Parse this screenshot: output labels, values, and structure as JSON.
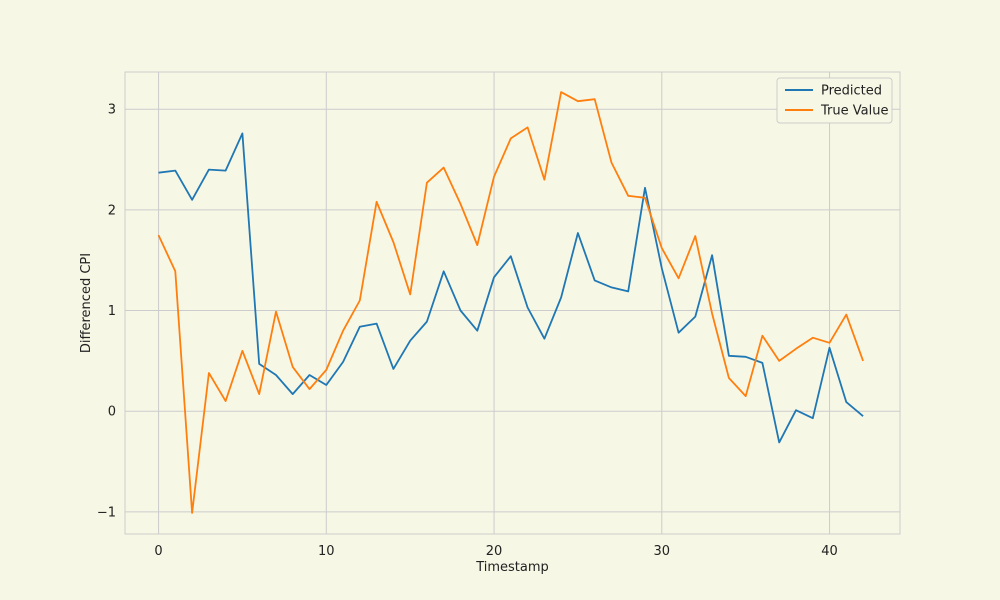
{
  "chart_data": {
    "type": "line",
    "title": "",
    "xlabel": "Timestamp",
    "ylabel": "Differenced CPI",
    "xlim": [
      -2,
      44.2
    ],
    "ylim": [
      -1.22,
      3.37
    ],
    "xticks": [
      0,
      10,
      20,
      30,
      40
    ],
    "yticks": [
      -1,
      0,
      1,
      2,
      3
    ],
    "ytick_labels": [
      "−1",
      "0",
      "1",
      "2",
      "3"
    ],
    "grid": true,
    "legend_position": "top-right",
    "x": [
      0,
      1,
      2,
      3,
      4,
      5,
      6,
      7,
      8,
      9,
      10,
      11,
      12,
      13,
      14,
      15,
      16,
      17,
      18,
      19,
      20,
      21,
      22,
      23,
      24,
      25,
      26,
      27,
      28,
      29,
      30,
      31,
      32,
      33,
      34,
      35,
      36,
      37,
      38,
      39,
      40,
      41,
      42
    ],
    "series": [
      {
        "name": "Predicted",
        "color": "#1f77b4",
        "values": [
          2.37,
          2.39,
          2.1,
          2.4,
          2.39,
          2.76,
          0.47,
          0.36,
          0.17,
          0.36,
          0.26,
          0.49,
          0.84,
          0.87,
          0.42,
          0.7,
          0.89,
          1.39,
          1.0,
          0.8,
          1.33,
          1.54,
          1.03,
          0.72,
          1.13,
          1.77,
          1.3,
          1.23,
          1.19,
          2.22,
          1.42,
          0.78,
          0.94,
          1.55,
          0.55,
          0.54,
          0.48,
          -0.31,
          0.01,
          -0.07,
          0.63,
          0.09,
          -0.05
        ]
      },
      {
        "name": "True Value",
        "color": "#ff7f0e",
        "values": [
          1.75,
          1.39,
          -1.01,
          0.38,
          0.1,
          0.6,
          0.17,
          0.99,
          0.44,
          0.22,
          0.41,
          0.8,
          1.1,
          2.08,
          1.68,
          1.16,
          2.27,
          2.42,
          2.06,
          1.65,
          2.33,
          2.71,
          2.82,
          2.3,
          3.17,
          3.08,
          3.1,
          2.47,
          2.14,
          2.12,
          1.62,
          1.32,
          1.74,
          0.97,
          0.33,
          0.15,
          0.75,
          0.5,
          0.62,
          0.73,
          0.68,
          0.96,
          0.5
        ]
      }
    ]
  },
  "style": {
    "plot_background": "#f7f7e6",
    "grid_color": "#cccccc",
    "axis_spine_color": "#cccccc"
  }
}
